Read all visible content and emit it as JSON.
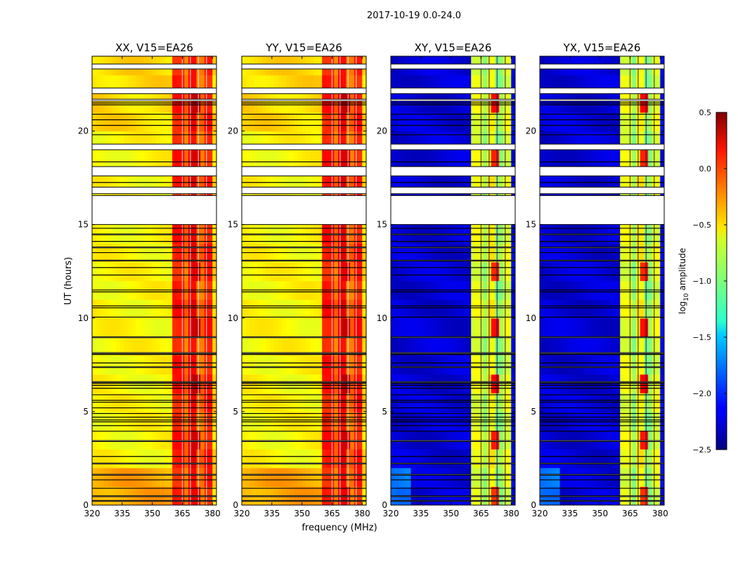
{
  "chart_data": {
    "type": "heatmap",
    "suptitle": "2017-10-19 0.0-24.0",
    "xlabel": "frequency (MHz)",
    "ylabel": "UT (hours)",
    "xlim": [
      320,
      382
    ],
    "ylim": [
      0,
      24
    ],
    "xticks": [
      320,
      335,
      350,
      365,
      380
    ],
    "yticks": [
      0,
      5,
      10,
      15,
      20
    ],
    "colormap": "jet",
    "colorbar": {
      "label": "log10 amplitude",
      "label_main": "log",
      "label_sub": "10",
      "label_rest": " amplitude",
      "range": [
        -2.5,
        0.5
      ],
      "ticks": [
        -2.5,
        -2.0,
        -1.5,
        -1.0,
        -0.5,
        0.0,
        0.5
      ],
      "tick_labels": [
        "−2.5",
        "−2.0",
        "−1.5",
        "−1.0",
        "−0.5",
        "0.0",
        "0.5"
      ]
    },
    "panels": [
      {
        "title": "XX, V15=EA26",
        "kind": "parallel"
      },
      {
        "title": "YY, V15=EA26",
        "kind": "parallel"
      },
      {
        "title": "XY, V15=EA26",
        "kind": "cross"
      },
      {
        "title": "YX, V15=EA26",
        "kind": "cross"
      }
    ],
    "levels": {
      "parallel": {
        "low_band": -0.62,
        "high_band": 0.05,
        "peak": 0.25
      },
      "cross": {
        "low_band": -2.25,
        "high_band": -0.7,
        "peak": 0.05
      }
    },
    "band_edges_mhz": [
      360,
      365.5,
      368.5,
      372.5,
      375.5,
      379.5
    ],
    "vertical_gap_lines_mhz": [
      365,
      369,
      373,
      377
    ],
    "flagged_gaps_hours": [
      [
        23.32,
        23.58
      ],
      [
        22.0,
        22.3
      ],
      [
        21.6,
        21.7
      ],
      [
        19.0,
        19.3
      ],
      [
        17.6,
        18.1
      ],
      [
        16.65,
        17.0
      ],
      [
        15.0,
        16.55
      ],
      [
        14.45,
        14.5
      ],
      [
        13.75,
        13.8
      ],
      [
        13.05,
        13.1
      ],
      [
        8.95,
        9.0
      ],
      [
        8.1,
        8.15
      ],
      [
        7.35,
        7.4
      ],
      [
        6.55,
        6.6
      ],
      [
        3.4,
        3.45
      ],
      [
        2.2,
        2.25
      ],
      [
        1.6,
        1.65
      ],
      [
        0.45,
        0.5
      ],
      [
        0.2,
        0.25
      ]
    ],
    "dark_lines_hours": [
      21.5,
      21.4,
      20.9,
      20.6,
      20.3,
      19.8,
      18.35,
      17.25,
      14.8,
      14.1,
      13.5,
      12.7,
      12.3,
      11.5,
      11.4,
      10.65,
      10.55,
      10.05,
      8.05,
      7.6,
      6.5,
      6.4,
      6.25,
      5.9,
      5.6,
      5.5,
      5.2,
      4.9,
      4.7,
      4.55,
      4.45,
      4.25,
      3.95,
      2.6,
      1.35,
      0.9
    ]
  }
}
